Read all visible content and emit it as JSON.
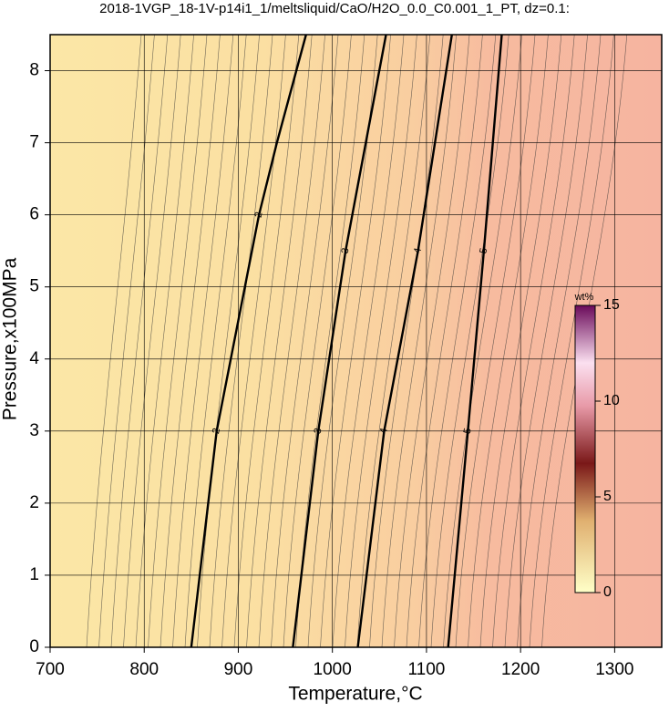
{
  "chart_data": {
    "type": "contour",
    "title": "2018-1VGP_18-1V-p14i1_1/meltsliquid/CaO/H2O_0.0_C0.001_1_PT, dz=0.1:",
    "xlabel": "Temperature,°C",
    "ylabel": "Pressure,x100MPa",
    "xlim": [
      700,
      1350
    ],
    "ylim": [
      0,
      8.5
    ],
    "xticks": [
      700,
      800,
      900,
      1000,
      1100,
      1200,
      1300
    ],
    "yticks": [
      0,
      1,
      2,
      3,
      4,
      5,
      6,
      7,
      8
    ],
    "grid": true,
    "contours": [
      {
        "level": 2,
        "x": [
          850,
          877,
          922,
          941,
          972
        ],
        "y": [
          0,
          3,
          6,
          7,
          8.5
        ]
      },
      {
        "level": 3,
        "x": [
          958,
          985,
          1014,
          1057
        ],
        "y": [
          0,
          3,
          5.5,
          8.5
        ]
      },
      {
        "level": 4,
        "x": [
          1027,
          1055,
          1091,
          1127
        ],
        "y": [
          0,
          3,
          5.5,
          8.5
        ]
      },
      {
        "level": 5,
        "x": [
          1123,
          1144,
          1161,
          1180
        ],
        "y": [
          0,
          3,
          5.5,
          8.5
        ]
      }
    ],
    "colorbar": {
      "label": "wt%",
      "lim": [
        0,
        15
      ],
      "ticks": [
        0,
        5,
        10,
        15
      ]
    }
  }
}
